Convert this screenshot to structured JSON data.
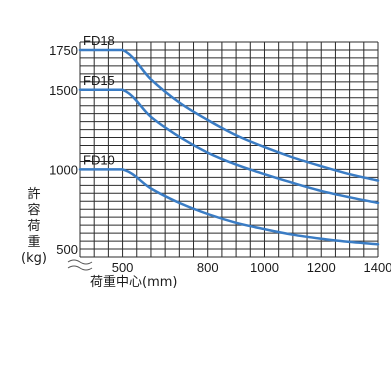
{
  "chart_data": {
    "type": "line",
    "title": "",
    "xlabel": "荷重中心(mm)",
    "ylabel": "許容荷重(kg)",
    "ylabel_chars": [
      "許",
      "容",
      "荷",
      "重",
      "(kg)"
    ],
    "xlim": [
      350,
      1400
    ],
    "ylim": [
      450,
      1800
    ],
    "x_ticks": [
      500,
      800,
      1000,
      1200,
      1400
    ],
    "y_ticks": [
      500,
      1000,
      1500,
      1750
    ],
    "grid": true,
    "line_color": "#3a7cc4",
    "series": [
      {
        "name": "FD18",
        "x": [
          350,
          500,
          600,
          700,
          800,
          900,
          1000,
          1100,
          1200,
          1300,
          1400
        ],
        "y": [
          1750,
          1750,
          1565,
          1420,
          1310,
          1215,
          1140,
          1075,
          1020,
          970,
          930
        ]
      },
      {
        "name": "FD15",
        "x": [
          350,
          500,
          600,
          700,
          800,
          900,
          1000,
          1100,
          1200,
          1300,
          1400
        ],
        "y": [
          1500,
          1500,
          1330,
          1205,
          1105,
          1030,
          970,
          915,
          865,
          825,
          790
        ]
      },
      {
        "name": "FD10",
        "x": [
          350,
          500,
          600,
          700,
          800,
          900,
          1000,
          1100,
          1200,
          1300,
          1400
        ],
        "y": [
          1000,
          1000,
          880,
          790,
          720,
          665,
          625,
          590,
          565,
          545,
          530
        ]
      }
    ]
  }
}
